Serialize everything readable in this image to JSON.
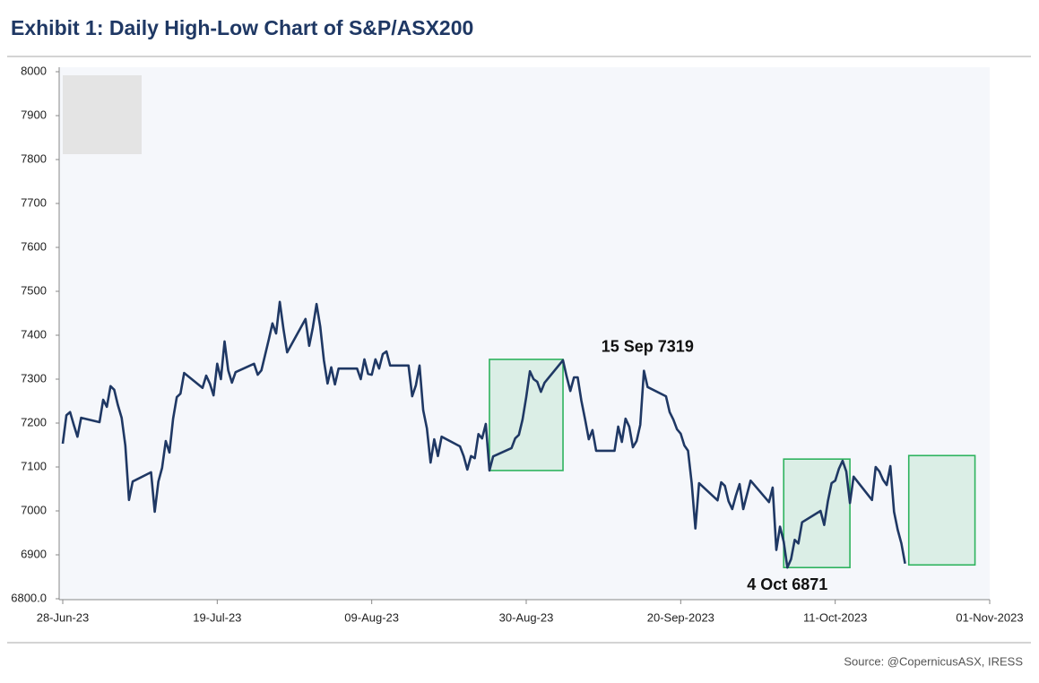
{
  "chart_data": {
    "type": "line",
    "title": "Exhibit 1: Daily High-Low Chart of S&P/ASX200",
    "source": "Source: @CopernicusASX, IRESS",
    "color": "#1f3864",
    "x": [
      "2023-06-28",
      "2023-06-28",
      "2023-06-29",
      "2023-06-29",
      "2023-06-30",
      "2023-06-30",
      "2023-07-03",
      "2023-07-03",
      "2023-07-04",
      "2023-07-04",
      "2023-07-05",
      "2023-07-05",
      "2023-07-06",
      "2023-07-06",
      "2023-07-07",
      "2023-07-07",
      "2023-07-10",
      "2023-07-10",
      "2023-07-11",
      "2023-07-11",
      "2023-07-12",
      "2023-07-12",
      "2023-07-13",
      "2023-07-13",
      "2023-07-14",
      "2023-07-14",
      "2023-07-17",
      "2023-07-17",
      "2023-07-18",
      "2023-07-18",
      "2023-07-19",
      "2023-07-19",
      "2023-07-20",
      "2023-07-20",
      "2023-07-21",
      "2023-07-21",
      "2023-07-24",
      "2023-07-24",
      "2023-07-25",
      "2023-07-25",
      "2023-07-26",
      "2023-07-26",
      "2023-07-27",
      "2023-07-27",
      "2023-07-28",
      "2023-07-28",
      "2023-07-31",
      "2023-07-31",
      "2023-08-01",
      "2023-08-01",
      "2023-08-02",
      "2023-08-02",
      "2023-08-03",
      "2023-08-03",
      "2023-08-04",
      "2023-08-04",
      "2023-08-07",
      "2023-08-07",
      "2023-08-08",
      "2023-08-08",
      "2023-08-09",
      "2023-08-09",
      "2023-08-10",
      "2023-08-10",
      "2023-08-11",
      "2023-08-11",
      "2023-08-14",
      "2023-08-14",
      "2023-08-15",
      "2023-08-15",
      "2023-08-16",
      "2023-08-16",
      "2023-08-17",
      "2023-08-17",
      "2023-08-18",
      "2023-08-18",
      "2023-08-21",
      "2023-08-21",
      "2023-08-22",
      "2023-08-22",
      "2023-08-23",
      "2023-08-23",
      "2023-08-24",
      "2023-08-24",
      "2023-08-25",
      "2023-08-25",
      "2023-08-28",
      "2023-08-28",
      "2023-08-29",
      "2023-08-29",
      "2023-08-30",
      "2023-08-30",
      "2023-08-31",
      "2023-08-31",
      "2023-09-01",
      "2023-09-01",
      "2023-09-04",
      "2023-09-04",
      "2023-09-05",
      "2023-09-05",
      "2023-09-06",
      "2023-09-06",
      "2023-09-07",
      "2023-09-07",
      "2023-09-08",
      "2023-09-08",
      "2023-09-11",
      "2023-09-11",
      "2023-09-12",
      "2023-09-12",
      "2023-09-13",
      "2023-09-13",
      "2023-09-14",
      "2023-09-14",
      "2023-09-15",
      "2023-09-15",
      "2023-09-18",
      "2023-09-18",
      "2023-09-19",
      "2023-09-19",
      "2023-09-20",
      "2023-09-20",
      "2023-09-21",
      "2023-09-21",
      "2023-09-22",
      "2023-09-22",
      "2023-09-25",
      "2023-09-25",
      "2023-09-26",
      "2023-09-26",
      "2023-09-27",
      "2023-09-27",
      "2023-09-28",
      "2023-09-28",
      "2023-09-29",
      "2023-09-29",
      "2023-10-02",
      "2023-10-02",
      "2023-10-03",
      "2023-10-03",
      "2023-10-04",
      "2023-10-04",
      "2023-10-05",
      "2023-10-05",
      "2023-10-06",
      "2023-10-06",
      "2023-10-09",
      "2023-10-09",
      "2023-10-10",
      "2023-10-10",
      "2023-10-11",
      "2023-10-11",
      "2023-10-12",
      "2023-10-12",
      "2023-10-13",
      "2023-10-13",
      "2023-10-16",
      "2023-10-16",
      "2023-10-17",
      "2023-10-17",
      "2023-10-18",
      "2023-10-18",
      "2023-10-19",
      "2023-10-19",
      "2023-10-20",
      "2023-10-20"
    ],
    "values": [
      7153,
      7218,
      7225,
      7196,
      7169,
      7212,
      7202,
      7253,
      7237,
      7284,
      7276,
      7241,
      7212,
      7149,
      7025,
      7067,
      7088,
      6998,
      7067,
      7098,
      7159,
      7133,
      7210,
      7259,
      7267,
      7314,
      7280,
      7308,
      7290,
      7263,
      7335,
      7300,
      7386,
      7320,
      7292,
      7316,
      7335,
      7310,
      7320,
      7355,
      7390,
      7427,
      7404,
      7476,
      7414,
      7361,
      7437,
      7376,
      7418,
      7471,
      7420,
      7343,
      7290,
      7327,
      7288,
      7324,
      7324,
      7300,
      7345,
      7312,
      7310,
      7345,
      7324,
      7357,
      7363,
      7331,
      7331,
      7261,
      7286,
      7331,
      7229,
      7188,
      7110,
      7163,
      7125,
      7169,
      7147,
      7125,
      7094,
      7125,
      7120,
      7175,
      7165,
      7198,
      7092,
      7124,
      7143,
      7165,
      7173,
      7208,
      7259,
      7318,
      7300,
      7294,
      7271,
      7292,
      7343,
      7306,
      7273,
      7304,
      7304,
      7251,
      7208,
      7163,
      7184,
      7137,
      7137,
      7192,
      7157,
      7210,
      7192,
      7145,
      7159,
      7196,
      7319,
      7282,
      7261,
      7225,
      7208,
      7186,
      7176,
      7149,
      7137,
      7063,
      6960,
      7063,
      7024,
      7065,
      7057,
      7022,
      7004,
      7035,
      7061,
      7004,
      7037,
      7069,
      7020,
      7053,
      6911,
      6964,
      6930,
      6871,
      6890,
      6934,
      6926,
      6974,
      7000,
      6968,
      7022,
      7063,
      7069,
      7096,
      7114,
      7090,
      7018,
      7078,
      7025,
      7100,
      7090,
      7071,
      7059,
      7102,
      6998,
      6957,
      6926,
      6880
    ],
    "xlim": [
      "2023-06-28",
      "2023-11-01"
    ],
    "xticks": [
      {
        "value": "2023-06-28",
        "label": "28-Jun-23"
      },
      {
        "value": "2023-07-19",
        "label": "19-Jul-23"
      },
      {
        "value": "2023-08-09",
        "label": "09-Aug-23"
      },
      {
        "value": "2023-08-30",
        "label": "30-Aug-23"
      },
      {
        "value": "2023-09-20",
        "label": "20-Sep-2023"
      },
      {
        "value": "2023-10-11",
        "label": "11-Oct-2023"
      },
      {
        "value": "2023-11-01",
        "label": "01-Nov-2023"
      }
    ],
    "ylim": [
      6800,
      8000
    ],
    "yticks": [
      {
        "value": 6800,
        "label": "6800.0"
      },
      6900,
      7000,
      7100,
      7200,
      7300,
      7400,
      7500,
      7600,
      7700,
      7800,
      7900,
      8000
    ],
    "grid": false,
    "boxes": {
      "color": "#2eb35e",
      "items": [
        {
          "x0": "2023-08-25",
          "x1": "2023-09-04",
          "y0": 7092,
          "y1": 7345
        },
        {
          "x0": "2023-10-04",
          "x1": "2023-10-13",
          "y0": 6871,
          "y1": 7118
        },
        {
          "x0": "2023-10-21",
          "x1": "2023-10-30",
          "y0": 6877,
          "y1": 7126
        }
      ]
    },
    "annotations": [
      {
        "text": "15 Sep 7319",
        "x": "2023-09-15",
        "y": 7319,
        "placement": "above"
      },
      {
        "text": "4 Oct 6871",
        "x": "2023-10-04",
        "y": 6871,
        "placement": "below"
      }
    ]
  }
}
